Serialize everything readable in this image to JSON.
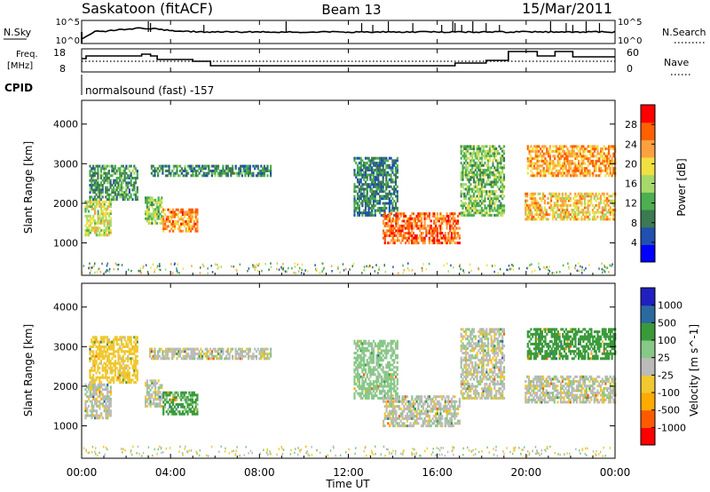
{
  "header": {
    "station": "Saskatoon (fitACF)",
    "beam": "Beam 13",
    "date": "15/Mar/2011"
  },
  "noise_panel": {
    "left_label": "N.Sky",
    "right_label": "N.Search",
    "left_ticks": [
      "10^5",
      "10^0"
    ],
    "right_ticks": [
      "10^5",
      "10^0"
    ]
  },
  "freq_panel": {
    "left_label_1": "Freq.",
    "left_label_2": "[MHz]",
    "right_label": "Nave",
    "left_ticks": [
      "18",
      "8"
    ],
    "right_ticks": [
      "60",
      "0"
    ]
  },
  "cpid": {
    "label": "CPID",
    "value": "normalsound (fast) -157"
  },
  "colors": {
    "power_scale": [
      "#0000ff",
      "#2050b0",
      "#3c7a52",
      "#4caf50",
      "#a6d96a",
      "#f0e040",
      "#ffa040",
      "#ff6000",
      "#ff0000"
    ],
    "velocity_scale": [
      "#ff0000",
      "#ff5a00",
      "#ffaa00",
      "#f0c830",
      "#bbbbbb",
      "#88c888",
      "#3a9a3a",
      "#2a6aa0",
      "#2020c0"
    ],
    "ground_scatter": "#bbbbbb"
  },
  "chart_data": [
    {
      "type": "heatmap",
      "panel": "power",
      "ylabel": "Slant Range [km]",
      "ylim": [
        180,
        4600
      ],
      "yticks": [
        "1000",
        "2000",
        "3000",
        "4000"
      ],
      "colorbar_label": "Power [dB]",
      "colorbar_ticks": [
        "4",
        "8",
        "12",
        "16",
        "20",
        "24",
        "28"
      ],
      "colorbar_range": [
        0,
        32
      ],
      "x_hours_range": [
        0,
        24
      ],
      "echo_regions": [
        {
          "t0": 0.1,
          "t1": 1.3,
          "r0": 1200,
          "r1": 2100,
          "value": 18
        },
        {
          "t0": 0.3,
          "t1": 2.5,
          "r0": 2100,
          "r1": 3000,
          "value": 11
        },
        {
          "t0": 2.8,
          "t1": 3.6,
          "r0": 1500,
          "r1": 2200,
          "value": 15
        },
        {
          "t0": 3.6,
          "t1": 5.2,
          "r0": 1300,
          "r1": 1900,
          "value": 24
        },
        {
          "t0": 3.0,
          "t1": 8.5,
          "r0": 2700,
          "r1": 3000,
          "value": 10
        },
        {
          "t0": 12.2,
          "t1": 14.2,
          "r0": 1700,
          "r1": 3200,
          "value": 9
        },
        {
          "t0": 13.5,
          "t1": 17.0,
          "r0": 1000,
          "r1": 1800,
          "value": 26
        },
        {
          "t0": 17.0,
          "t1": 19.0,
          "r0": 1700,
          "r1": 3500,
          "value": 14
        },
        {
          "t0": 19.9,
          "t1": 24.0,
          "r0": 1600,
          "r1": 2300,
          "value": 21
        },
        {
          "t0": 20.0,
          "t1": 24.0,
          "r0": 2700,
          "r1": 3500,
          "value": 23
        }
      ]
    },
    {
      "type": "heatmap",
      "panel": "velocity",
      "ylabel": "Slant Range [km]",
      "ylim": [
        180,
        4600
      ],
      "yticks": [
        "1000",
        "2000",
        "3000",
        "4000"
      ],
      "colorbar_label": "Velocity [m s^-1]",
      "colorbar_ticks": [
        "-1000",
        "-500",
        "-100",
        "-25",
        "25",
        "100",
        "500",
        "1000"
      ],
      "x_hours_range": [
        0,
        24
      ],
      "echo_regions": [
        {
          "t0": 0.1,
          "t1": 1.3,
          "r0": 1200,
          "r1": 2100,
          "value": 0
        },
        {
          "t0": 0.3,
          "t1": 2.5,
          "r0": 2100,
          "r1": 3300,
          "value": -60
        },
        {
          "t0": 2.8,
          "t1": 3.6,
          "r0": 1500,
          "r1": 2200,
          "value": 0
        },
        {
          "t0": 3.6,
          "t1": 5.2,
          "r0": 1300,
          "r1": 1900,
          "value": 120
        },
        {
          "t0": 3.0,
          "t1": 8.5,
          "r0": 2700,
          "r1": 3000,
          "value": 0
        },
        {
          "t0": 12.2,
          "t1": 14.2,
          "r0": 1700,
          "r1": 3200,
          "value": 60
        },
        {
          "t0": 13.5,
          "t1": 17.0,
          "r0": 1000,
          "r1": 1800,
          "value": 0
        },
        {
          "t0": 17.0,
          "t1": 19.0,
          "r0": 1700,
          "r1": 3500,
          "value": 0
        },
        {
          "t0": 19.9,
          "t1": 24.0,
          "r0": 1600,
          "r1": 2300,
          "value": 0
        },
        {
          "t0": 20.0,
          "t1": 24.0,
          "r0": 2700,
          "r1": 3500,
          "value": 200
        }
      ]
    }
  ],
  "time_axis": {
    "ticks": [
      "00:00",
      "04:00",
      "08:00",
      "12:00",
      "16:00",
      "20:00",
      "00:00"
    ],
    "label": "Time UT"
  }
}
